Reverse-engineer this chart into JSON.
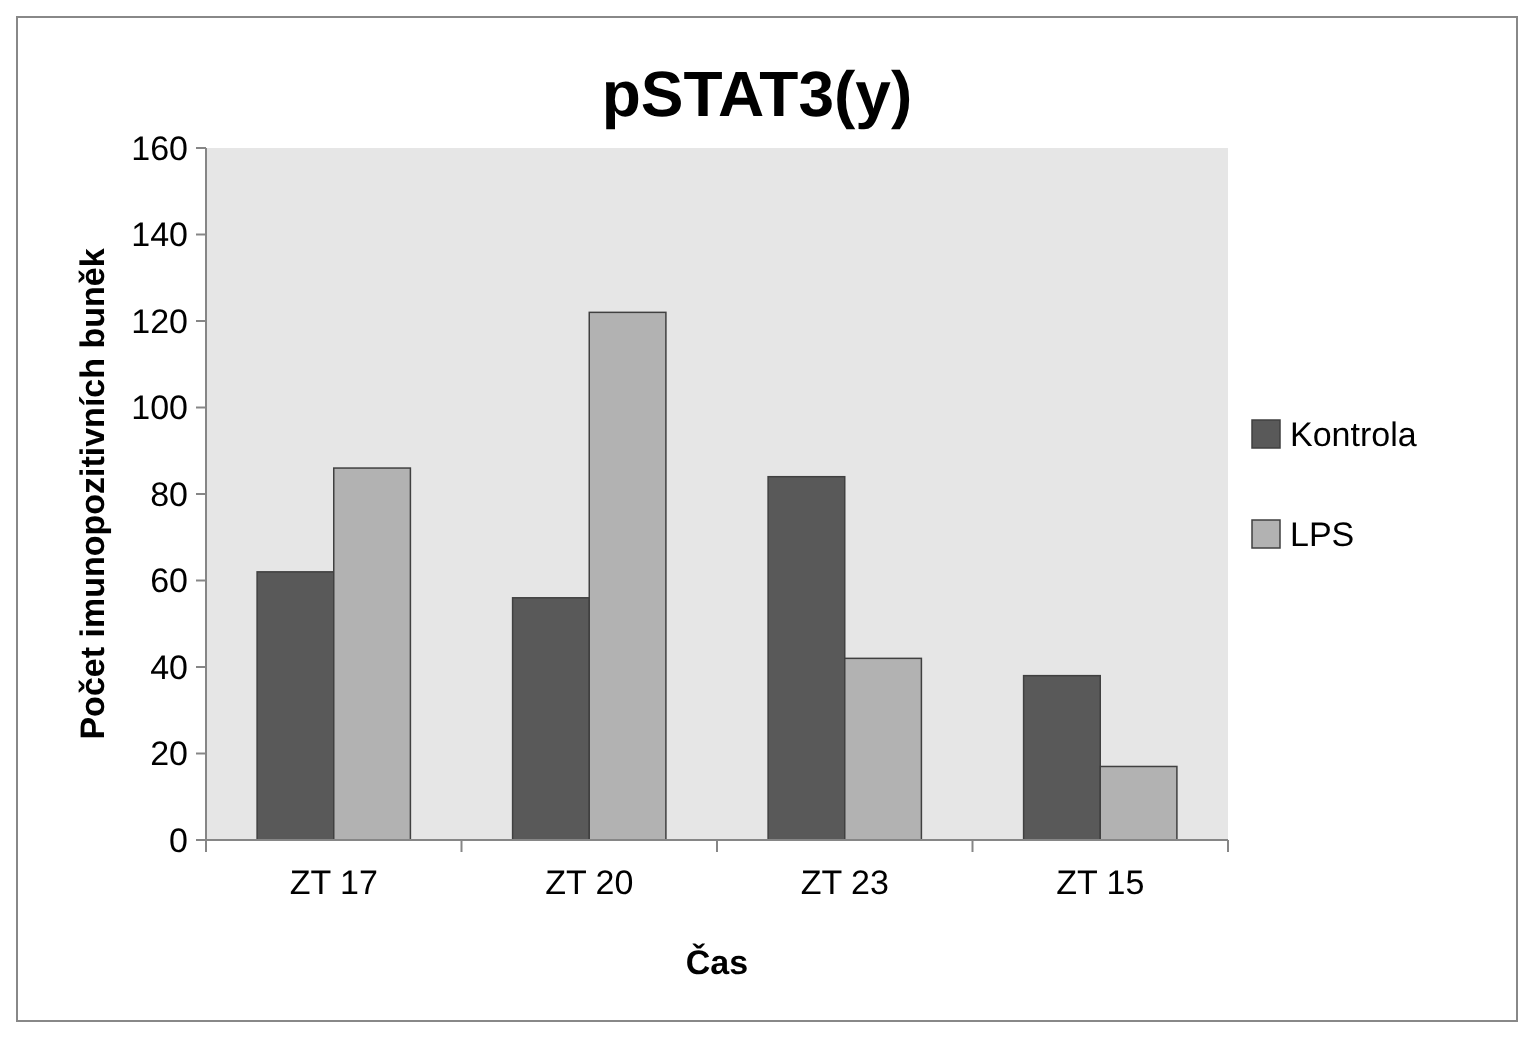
{
  "chart_data": {
    "type": "bar",
    "title": "pSTAT3(y)",
    "xlabel": "Čas",
    "ylabel": "Počet imunopozitivních buněk",
    "categories": [
      "ZT 17",
      "ZT 20",
      "ZT 23",
      "ZT 15"
    ],
    "series": [
      {
        "name": "Kontrola",
        "color": "#595959",
        "values": [
          62,
          56,
          84,
          38
        ]
      },
      {
        "name": "LPS",
        "color": "#b2b2b2",
        "values": [
          86,
          122,
          42,
          17
        ]
      }
    ],
    "ylim": [
      0,
      160
    ],
    "yticks": [
      0,
      20,
      40,
      60,
      80,
      100,
      120,
      140,
      160
    ],
    "grid": false,
    "legend": "right"
  }
}
